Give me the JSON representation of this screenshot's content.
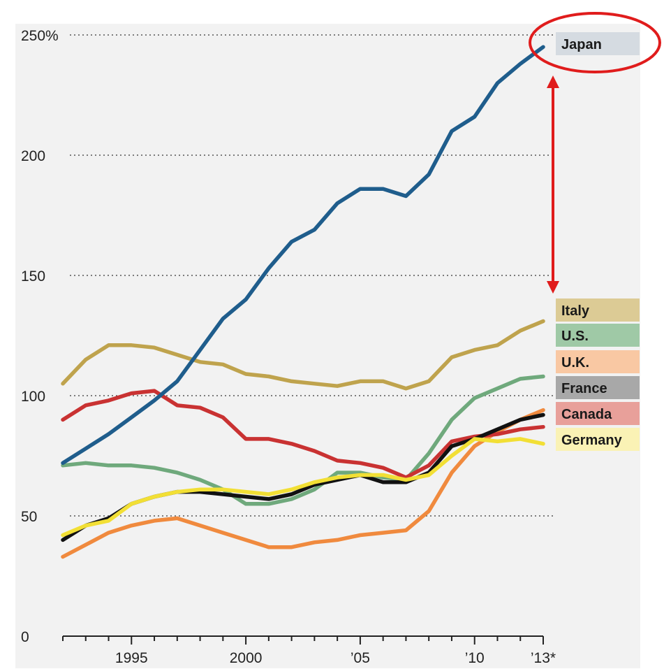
{
  "chart_data": {
    "type": "line",
    "y_unit_suffix": "%",
    "ylim": [
      0,
      250
    ],
    "yticks": [
      0,
      50,
      100,
      150,
      200,
      250
    ],
    "ytick_labels": [
      "0",
      "50",
      "100",
      "150",
      "200",
      "250%"
    ],
    "xlim": [
      1992,
      2013
    ],
    "xticks": [
      1995,
      2000,
      2005,
      2010,
      2013
    ],
    "xtick_labels": [
      "1995",
      "2000",
      "’05",
      "’10",
      "’13*"
    ],
    "grid": "horizontal dotted",
    "x": [
      1992,
      1993,
      1994,
      1995,
      1996,
      1997,
      1998,
      1999,
      2000,
      2001,
      2002,
      2003,
      2004,
      2005,
      2006,
      2007,
      2008,
      2009,
      2010,
      2011,
      2012,
      2013
    ],
    "series": [
      {
        "name": "Japan",
        "color": "#1f5d8c",
        "legend_bg": "#d5dbe1",
        "values": [
          72,
          78,
          84,
          91,
          98,
          106,
          119,
          132,
          140,
          153,
          164,
          169,
          180,
          186,
          186,
          183,
          192,
          210,
          216,
          230,
          238,
          245
        ]
      },
      {
        "name": "Italy",
        "color": "#bfa34d",
        "legend_bg": "#dccb95",
        "values": [
          105,
          115,
          121,
          121,
          120,
          117,
          114,
          113,
          109,
          108,
          106,
          105,
          104,
          106,
          106,
          103,
          106,
          116,
          119,
          121,
          127,
          131
        ]
      },
      {
        "name": "U.S.",
        "color": "#6fa97c",
        "legend_bg": "#9fc9a6",
        "values": [
          71,
          72,
          71,
          71,
          70,
          68,
          65,
          61,
          55,
          55,
          57,
          61,
          68,
          68,
          66,
          65,
          76,
          90,
          99,
          103,
          107,
          108
        ]
      },
      {
        "name": "U.K.",
        "color": "#f08a3e",
        "legend_bg": "#f9c8a3",
        "values": [
          33,
          38,
          43,
          46,
          48,
          49,
          46,
          43,
          40,
          37,
          37,
          39,
          40,
          42,
          43,
          44,
          52,
          68,
          79,
          85,
          90,
          94
        ]
      },
      {
        "name": "France",
        "color": "#111111",
        "legend_bg": "#a8a8a8",
        "values": [
          40,
          46,
          49,
          55,
          58,
          60,
          60,
          59,
          58,
          57,
          59,
          63,
          65,
          67,
          64,
          64,
          68,
          79,
          82,
          86,
          90,
          92
        ]
      },
      {
        "name": "Canada",
        "color": "#c93232",
        "legend_bg": "#e8a09a",
        "values": [
          90,
          96,
          98,
          101,
          102,
          96,
          95,
          91,
          82,
          82,
          80,
          77,
          73,
          72,
          70,
          66,
          71,
          81,
          83,
          84,
          86,
          87
        ]
      },
      {
        "name": "Germany",
        "color": "#f2df35",
        "legend_bg": "#faf2b5",
        "values": [
          42,
          46,
          48,
          55,
          58,
          60,
          61,
          61,
          60,
          59,
          61,
          64,
          66,
          67,
          67,
          65,
          67,
          75,
          82,
          81,
          82,
          80
        ]
      }
    ],
    "annotations": [
      "red ellipse around Japan label",
      "red double-headed arrow from Japan down to Italy"
    ]
  }
}
